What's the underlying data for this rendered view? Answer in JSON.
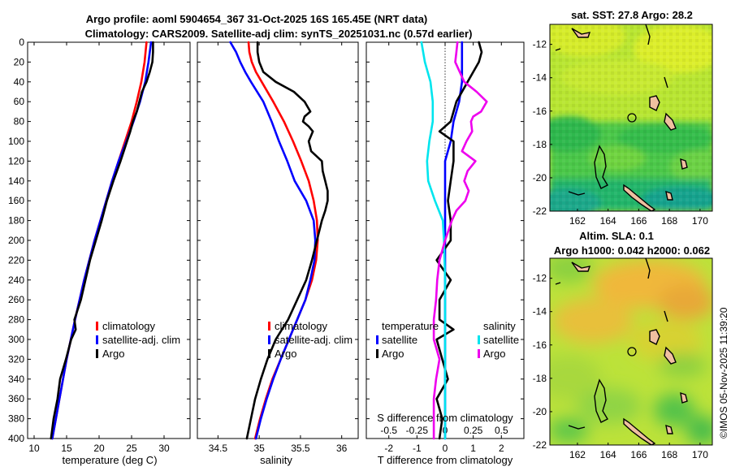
{
  "figure": {
    "title_line1": "Argo profile: aoml 5904654_367 31-Oct-2025 16S 165.45E (NRT data)",
    "title_line2": "Climatology: CARS2009. Satellite-adj clim: synTS_20251031.nc (0.57d earlier)",
    "side_label": "©IMOS 05-Nov-2025 11:39:20"
  },
  "colors": {
    "climatology": "#ff0000",
    "satellite": "#0000ff",
    "argo": "#000000",
    "s_satellite": "#00e5ee",
    "s_argo": "#ee00ee"
  },
  "chart_data": [
    {
      "type": "line",
      "id": "temperature",
      "xlabel": "temperature (deg C)",
      "ylabel": "",
      "xlim": [
        9,
        34
      ],
      "ylim": [
        0,
        400
      ],
      "y_reversed": true,
      "xticks": [
        10,
        15,
        20,
        25,
        30
      ],
      "xtick_labels": [
        "10",
        "15",
        "20",
        "25",
        "30"
      ],
      "yticks": [
        0,
        20,
        40,
        60,
        80,
        100,
        120,
        140,
        160,
        180,
        200,
        220,
        240,
        260,
        280,
        300,
        320,
        340,
        360,
        380,
        400
      ],
      "ytick_labels": [
        "0",
        "20",
        "40",
        "60",
        "80",
        "100",
        "120",
        "140",
        "160",
        "180",
        "200",
        "220",
        "240",
        "260",
        "280",
        "300",
        "320",
        "340",
        "360",
        "380",
        "400"
      ],
      "legend": [
        "climatology",
        "satellite-adj. clim",
        "Argo"
      ],
      "series": [
        {
          "name": "climatology",
          "color_key": "climatology",
          "depth": [
            0,
            20,
            40,
            60,
            80,
            100,
            120,
            140,
            160,
            180,
            200,
            240,
            280,
            320,
            360,
            400
          ],
          "values": [
            27.3,
            27.0,
            26.5,
            25.8,
            25.0,
            24.0,
            23.0,
            22.0,
            21.1,
            20.2,
            19.3,
            17.7,
            16.3,
            15.0,
            13.9,
            12.8
          ]
        },
        {
          "name": "satellite-adj. clim",
          "color_key": "satellite",
          "depth": [
            0,
            20,
            40,
            60,
            80,
            100,
            120,
            140,
            160,
            180,
            200,
            240,
            280,
            320,
            360,
            400
          ],
          "values": [
            28.0,
            27.6,
            27.1,
            26.3,
            25.3,
            24.2,
            23.0,
            22.0,
            21.1,
            20.2,
            19.3,
            17.7,
            16.3,
            15.0,
            13.9,
            12.8
          ]
        },
        {
          "name": "Argo",
          "color_key": "argo",
          "depth": [
            0,
            10,
            20,
            30,
            40,
            50,
            60,
            70,
            80,
            90,
            100,
            110,
            120,
            140,
            160,
            180,
            200,
            220,
            240,
            260,
            280,
            290,
            300,
            320,
            340,
            360,
            380,
            400
          ],
          "values": [
            28.3,
            28.3,
            28.2,
            27.8,
            27.3,
            26.6,
            26.2,
            25.8,
            25.2,
            24.8,
            24.3,
            23.8,
            23.3,
            22.2,
            21.2,
            20.4,
            19.5,
            18.6,
            17.9,
            17.2,
            16.2,
            16.4,
            15.7,
            14.9,
            14.0,
            13.6,
            13.0,
            12.6
          ]
        }
      ]
    },
    {
      "type": "line",
      "id": "salinity",
      "xlabel": "salinity",
      "xlim": [
        34.25,
        36.2
      ],
      "ylim": [
        0,
        400
      ],
      "y_reversed": true,
      "xticks": [
        34.5,
        35,
        35.5,
        36
      ],
      "xtick_labels": [
        "34.5",
        "35",
        "35.5",
        "36"
      ],
      "legend": [
        "climatology",
        "satellite-adj. clim",
        "Argo"
      ],
      "series": [
        {
          "name": "climatology",
          "color_key": "climatology",
          "depth": [
            0,
            10,
            20,
            30,
            40,
            60,
            80,
            100,
            120,
            140,
            160,
            180,
            200,
            220,
            240,
            260,
            280,
            300,
            320,
            340,
            360,
            380,
            400
          ],
          "values": [
            34.87,
            34.88,
            34.91,
            34.96,
            35.03,
            35.17,
            35.3,
            35.41,
            35.51,
            35.6,
            35.66,
            35.7,
            35.71,
            35.69,
            35.64,
            35.56,
            35.46,
            35.36,
            35.26,
            35.16,
            35.08,
            35.01,
            34.95
          ]
        },
        {
          "name": "satellite-adj. clim",
          "color_key": "satellite",
          "depth": [
            0,
            10,
            20,
            30,
            40,
            60,
            80,
            100,
            120,
            140,
            160,
            180,
            200,
            220,
            240,
            260,
            280,
            300,
            320,
            340,
            360,
            380,
            400
          ],
          "values": [
            34.65,
            34.72,
            34.77,
            34.83,
            34.9,
            35.05,
            35.15,
            35.24,
            35.34,
            35.43,
            35.57,
            35.66,
            35.68,
            35.67,
            35.62,
            35.56,
            35.46,
            35.36,
            35.26,
            35.17,
            35.09,
            35.02,
            34.96
          ]
        },
        {
          "name": "Argo",
          "color_key": "argo",
          "depth": [
            0,
            10,
            20,
            30,
            40,
            50,
            60,
            70,
            75,
            80,
            85,
            90,
            100,
            110,
            120,
            130,
            140,
            150,
            160,
            170,
            180,
            200,
            220,
            240,
            260,
            280,
            300,
            320,
            340,
            360,
            380,
            400
          ],
          "values": [
            34.98,
            34.98,
            35.0,
            35.05,
            35.2,
            35.42,
            35.55,
            35.62,
            35.55,
            35.53,
            35.6,
            35.65,
            35.6,
            35.63,
            35.76,
            35.77,
            35.8,
            35.83,
            35.83,
            35.8,
            35.76,
            35.7,
            35.64,
            35.57,
            35.46,
            35.35,
            35.2,
            35.1,
            35.02,
            34.95,
            34.9,
            34.85
          ]
        }
      ]
    },
    {
      "type": "line",
      "id": "differences",
      "xlabel": "T difference from climatology",
      "xlabel_top": "S difference from climatology",
      "xlim": [
        -2.8,
        2.8
      ],
      "ylim": [
        0,
        400
      ],
      "y_reversed": true,
      "xticks": [
        -2,
        -1,
        0,
        1,
        2
      ],
      "xtick_labels": [
        "-2",
        "-1",
        "0",
        "1",
        "2"
      ],
      "s_xticks": [
        -0.5,
        -0.25,
        0,
        0.25,
        0.5
      ],
      "s_xtick_labels": [
        "-0.5",
        "-0.25",
        "0",
        "0.25",
        "0.5"
      ],
      "s_scale": 4,
      "legend_temperature_title": "temperature",
      "legend_salinity_title": "salinity",
      "legend": [
        "satellite",
        "Argo",
        "satellite",
        "Argo"
      ],
      "series": [
        {
          "name": "temperature satellite",
          "color_key": "satellite",
          "depth": [
            0,
            20,
            40,
            60,
            80,
            100,
            120,
            140,
            160,
            200,
            240,
            280,
            320,
            360,
            400
          ],
          "values": [
            0.6,
            0.6,
            0.6,
            0.5,
            0.3,
            0.2,
            0.0,
            0.0,
            0.0,
            0.0,
            0.0,
            0.0,
            0.0,
            0.0,
            0.0
          ]
        },
        {
          "name": "temperature Argo",
          "color_key": "argo",
          "depth": [
            0,
            10,
            20,
            40,
            60,
            80,
            90,
            100,
            120,
            140,
            160,
            180,
            200,
            220,
            240,
            260,
            280,
            290,
            300,
            320,
            340,
            360,
            380,
            400
          ],
          "values": [
            1.2,
            1.3,
            1.2,
            0.8,
            0.4,
            0.2,
            -0.2,
            0.3,
            0.3,
            0.2,
            0.1,
            0.2,
            0.2,
            -0.3,
            0.2,
            -0.2,
            -0.2,
            0.3,
            -0.3,
            -0.1,
            0.1,
            -0.3,
            -0.1,
            -0.2
          ]
        },
        {
          "name": "salinity satellite",
          "color_key": "s_satellite",
          "depth": [
            0,
            20,
            40,
            60,
            80,
            100,
            120,
            140,
            160,
            180,
            200,
            240,
            280,
            320,
            360,
            400
          ],
          "values": [
            -0.21,
            -0.18,
            -0.13,
            -0.11,
            -0.11,
            -0.14,
            -0.16,
            -0.15,
            -0.09,
            -0.02,
            -0.01,
            0.0,
            0.0,
            0.0,
            0.0,
            0.0
          ]
        },
        {
          "name": "salinity Argo",
          "color_key": "s_argo",
          "depth": [
            0,
            10,
            20,
            40,
            50,
            60,
            70,
            75,
            80,
            90,
            100,
            110,
            120,
            130,
            140,
            150,
            160,
            170,
            180,
            200,
            220,
            240,
            260,
            280,
            300,
            320,
            340,
            360,
            380,
            400
          ],
          "values": [
            0.11,
            0.1,
            0.09,
            0.17,
            0.28,
            0.37,
            0.32,
            0.25,
            0.23,
            0.24,
            0.19,
            0.15,
            0.27,
            0.2,
            0.17,
            0.21,
            0.18,
            0.1,
            0.06,
            0.0,
            -0.05,
            -0.07,
            -0.08,
            -0.1,
            -0.1,
            -0.05,
            -0.08,
            -0.1,
            -0.1,
            -0.1
          ]
        }
      ]
    },
    {
      "type": "heatmap",
      "id": "sst-map",
      "title": "sat. SST: 27.8 Argo: 28.2",
      "xlim": [
        160.2,
        170.8
      ],
      "ylim": [
        -22,
        -10.8
      ],
      "xticks": [
        162,
        164,
        166,
        168,
        170
      ],
      "xtick_labels": [
        "162",
        "164",
        "166",
        "168",
        "170"
      ],
      "yticks": [
        -12,
        -14,
        -16,
        -18,
        -20,
        -22
      ],
      "ytick_labels": [
        "-12",
        "-14",
        "-16",
        "-18",
        "-20",
        "-22"
      ],
      "argo_position": [
        165.45,
        -16
      ]
    },
    {
      "type": "heatmap",
      "id": "sla-map",
      "title_line1": "Altim. SLA: 0.1",
      "title_line2": "Argo h1000: 0.042 h2000: 0.062",
      "xlim": [
        160.2,
        170.8
      ],
      "ylim": [
        -22,
        -10.8
      ],
      "xticks": [
        162,
        164,
        166,
        168,
        170
      ],
      "xtick_labels": [
        "162",
        "164",
        "166",
        "168",
        "170"
      ],
      "yticks": [
        -12,
        -14,
        -16,
        -18,
        -20,
        -22
      ],
      "ytick_labels": [
        "-12",
        "-14",
        "-16",
        "-18",
        "-20",
        "-22"
      ],
      "argo_position": [
        165.45,
        -16
      ]
    }
  ]
}
